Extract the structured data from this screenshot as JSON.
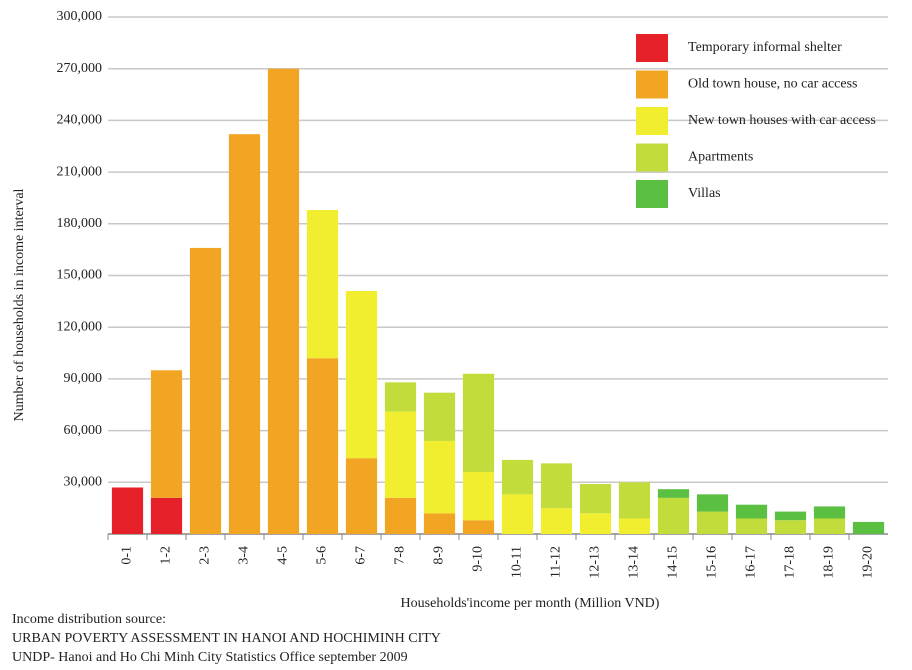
{
  "chart_data": {
    "type": "stacked_bar",
    "x_label": "Households'income per month (Million VND)",
    "y_label": "Number of households in income interval",
    "source": [
      "Income distribution source:",
      "URBAN POVERTY ASSESSMENT IN HANOI AND HOCHIMINH CITY",
      "UNDP- Hanoi and Ho Chi Minh City Statistics Office september 2009"
    ],
    "categories": [
      "0-1",
      "1-2",
      "2-3",
      "3-4",
      "4-5",
      "5-6",
      "6-7",
      "7-8",
      "8-9",
      "9-10",
      "10-11",
      "11-12",
      "12-13",
      "13-14",
      "14-15",
      "15-16",
      "16-17",
      "17-18",
      "18-19",
      "19-20"
    ],
    "series": [
      {
        "name": "Temporary informal shelter",
        "color": "#e62129",
        "values": [
          27000,
          21000,
          null,
          null,
          null,
          null,
          null,
          null,
          null,
          null,
          null,
          null,
          null,
          null,
          null,
          null,
          null,
          null,
          null,
          null
        ]
      },
      {
        "name": "Old town house, no car access",
        "color": "#f2a523",
        "values": [
          null,
          74000,
          166000,
          232000,
          270000,
          102000,
          44000,
          21000,
          12000,
          8000,
          null,
          null,
          null,
          null,
          null,
          null,
          null,
          null,
          null,
          null
        ]
      },
      {
        "name": "New town houses with car access",
        "color": "#f1ee30",
        "values": [
          null,
          null,
          null,
          null,
          null,
          86000,
          97000,
          50000,
          42000,
          28000,
          23000,
          15000,
          12000,
          9000,
          null,
          null,
          null,
          null,
          null,
          null
        ]
      },
      {
        "name": "Apartments",
        "color": "#c2dc3b",
        "values": [
          null,
          null,
          null,
          null,
          null,
          null,
          null,
          17000,
          28000,
          57000,
          20000,
          26000,
          17000,
          21000,
          21000,
          13000,
          9000,
          8000,
          9000,
          null
        ]
      },
      {
        "name": "Villas",
        "color": "#5bbf41",
        "values": [
          null,
          null,
          null,
          null,
          null,
          null,
          null,
          null,
          null,
          null,
          null,
          null,
          null,
          null,
          5000,
          10000,
          8000,
          5000,
          7000,
          7000
        ]
      }
    ],
    "ylim": [
      0,
      300000
    ],
    "yticks": [
      {
        "value": 30000,
        "label": "30,000"
      },
      {
        "value": 60000,
        "label": "60,000"
      },
      {
        "value": 90000,
        "label": "90,000"
      },
      {
        "value": 120000,
        "label": "120,000"
      },
      {
        "value": 150000,
        "label": "150,000"
      },
      {
        "value": 180000,
        "label": "180,000"
      },
      {
        "value": 210000,
        "label": "210,000"
      },
      {
        "value": 240000,
        "label": "240,000"
      },
      {
        "value": 270000,
        "label": "270,000"
      },
      {
        "value": 300000,
        "label": "300,000"
      }
    ],
    "grid": true,
    "legend": "top-right"
  }
}
